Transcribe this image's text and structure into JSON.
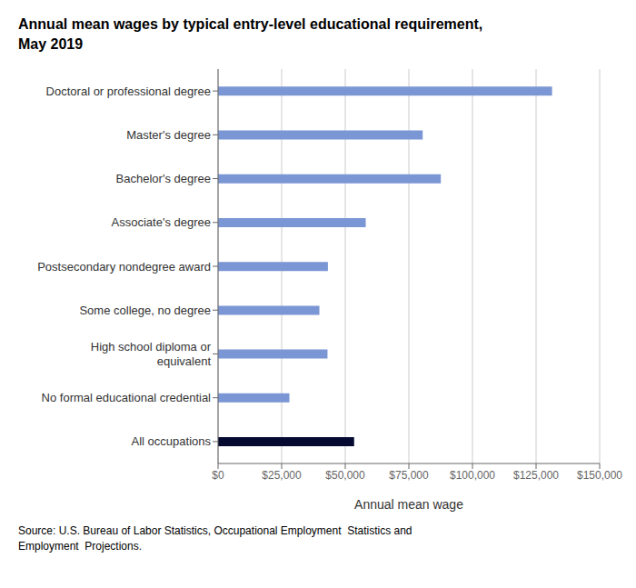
{
  "chart_data": {
    "type": "bar",
    "orientation": "horizontal",
    "title": "Annual mean wages by typical entry-level educational requirement,\nMay 2019",
    "annotations": [
      "Source: U.S. Bureau of Labor Statistics, Occupational Employment  Statistics and\nEmployment  Projections."
    ],
    "categories": [
      "All occupations",
      "No formal educational credential",
      "High school diploma or\nequivalent",
      "Some college, no degree",
      "Postsecondary nondegree award",
      "Associate's degree",
      "Bachelor's degree",
      "Master's degree",
      "Doctoral or professional degree"
    ],
    "values": [
      53490,
      28040,
      43020,
      39830,
      43180,
      58050,
      87570,
      80440,
      131300
    ],
    "colors": [
      "#050a30",
      "#7b96d4",
      "#7b96d4",
      "#7b96d4",
      "#7b96d4",
      "#7b96d4",
      "#7b96d4",
      "#7b96d4",
      "#7b96d4"
    ],
    "xlabel": "Annual mean wage",
    "xlim": [
      0,
      150000
    ],
    "xticks": [
      {
        "value": 0,
        "label": "$0"
      },
      {
        "value": 25000,
        "label": "$25,000"
      },
      {
        "value": 50000,
        "label": "$50,000"
      },
      {
        "value": 75000,
        "label": "$75,000"
      },
      {
        "value": 100000,
        "label": "$100,000"
      },
      {
        "value": 125000,
        "label": "$125,000"
      },
      {
        "value": 150000,
        "label": "$150,000"
      }
    ],
    "grid": true
  }
}
